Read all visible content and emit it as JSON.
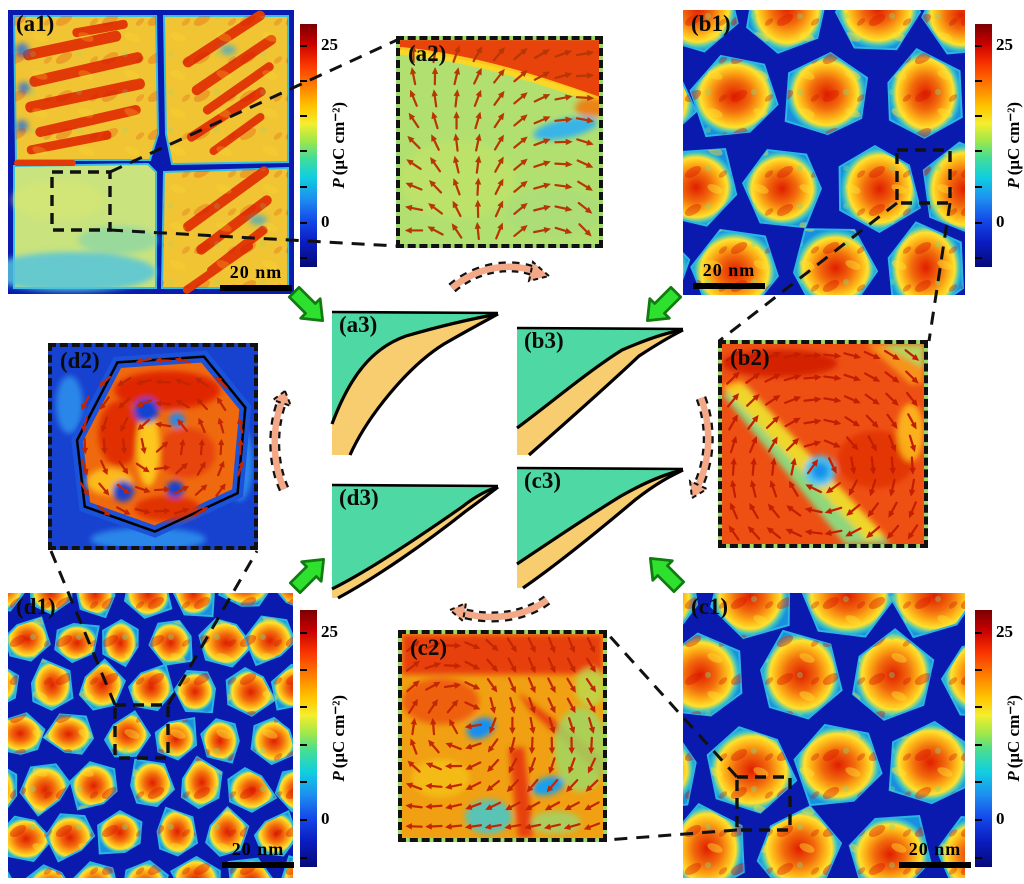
{
  "figure_labels": {
    "a1": "(a1)",
    "a2": "(a2)",
    "a3": "(a3)",
    "b1": "(b1)",
    "b2": "(b2)",
    "b3": "(b3)",
    "c1": "(c1)",
    "c2": "(c2)",
    "c3": "(c3)",
    "d1": "(d1)",
    "d2": "(d2)",
    "d3": "(d3)"
  },
  "colorbar": {
    "max": "25",
    "zero": "0",
    "symbol": "P",
    "unit": "(μC cm⁻²)"
  },
  "scalebar": {
    "text": "20 nm"
  },
  "colors": {
    "colormap": "jet",
    "boundary_blue": "#0a1aae",
    "grain_red": "#e01e00",
    "schematic_green": "#4ed9a4",
    "schematic_yellow": "#f7cd70",
    "green_arrow": "#2ee12e",
    "cycle_arrow_fill": "#f3a987",
    "vector_arrow": "#c03000"
  }
}
